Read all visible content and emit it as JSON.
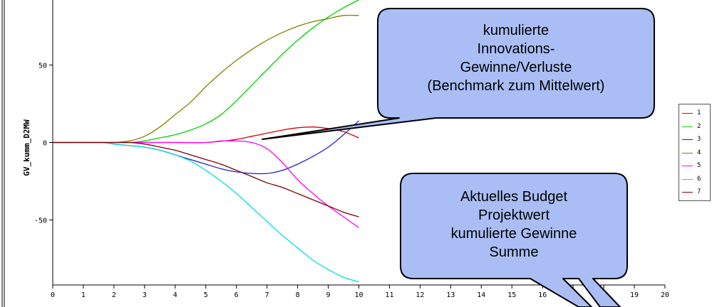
{
  "chart_data": {
    "type": "line",
    "ylabel": "GV_kumm_D2MW",
    "xlabel": "",
    "xlim": [
      0,
      20
    ],
    "ylim": [
      -92,
      92
    ],
    "x_ticks": [
      0,
      1,
      2,
      3,
      4,
      5,
      6,
      7,
      8,
      9,
      10,
      11,
      12,
      13,
      14,
      15,
      16,
      17,
      18,
      19,
      20
    ],
    "y_ticks": [
      -50,
      0,
      50
    ],
    "legend_position": "right",
    "series": [
      {
        "name": "1",
        "color": "#e00000",
        "x": [
          0,
          1.5,
          2,
          2.5,
          3,
          4,
          5,
          6,
          6.5,
          7,
          7.5,
          8,
          8.5,
          9,
          9.5,
          10
        ],
        "y": [
          0,
          0,
          0,
          0,
          0,
          0,
          0,
          2,
          4,
          6,
          8,
          9.5,
          10,
          9,
          7,
          3
        ]
      },
      {
        "name": "2",
        "color": "#00d000",
        "x": [
          0,
          1.5,
          2,
          2.5,
          3,
          3.5,
          4,
          4.5,
          5,
          5.5,
          6,
          6.5,
          7,
          7.5,
          8,
          8.5,
          9,
          9.5,
          10
        ],
        "y": [
          0,
          0,
          0,
          0,
          1,
          3,
          5,
          8,
          12,
          18,
          27,
          37,
          47,
          57,
          66,
          74,
          81,
          87,
          92
        ]
      },
      {
        "name": "3",
        "color": "#2020d0",
        "x": [
          0,
          1.5,
          2,
          2.5,
          3,
          3.5,
          4,
          4.5,
          5,
          5.5,
          6,
          6.5,
          7,
          7.5,
          8,
          8.5,
          9,
          9.5,
          10
        ],
        "y": [
          0,
          0,
          -1,
          -2,
          -3,
          -5,
          -8,
          -11,
          -14,
          -17,
          -19,
          -20,
          -20,
          -18,
          -14,
          -9,
          -3,
          5,
          14
        ]
      },
      {
        "name": "4",
        "color": "#808000",
        "x": [
          0,
          1.5,
          2,
          2.5,
          3,
          3.5,
          4,
          4.5,
          5,
          5.5,
          6,
          6.5,
          7,
          7.5,
          8,
          8.5,
          9,
          9.5,
          10
        ],
        "y": [
          0,
          0,
          0,
          1,
          4,
          10,
          18,
          26,
          36,
          45,
          53,
          60,
          66,
          71,
          75,
          78,
          80,
          82,
          82
        ]
      },
      {
        "name": "5",
        "color": "#ff00ff",
        "x": [
          0,
          1.5,
          2,
          2.5,
          3,
          4,
          5,
          5.5,
          6,
          6.5,
          7,
          7.5,
          8,
          8.5,
          9,
          9.5,
          10
        ],
        "y": [
          0,
          0,
          0,
          0,
          0,
          0,
          0,
          1,
          1,
          0,
          -4,
          -13,
          -24,
          -33,
          -41,
          -48,
          -55
        ]
      },
      {
        "name": "6",
        "color": "#00e0e0",
        "x": [
          0,
          1.5,
          2,
          2.5,
          3,
          3.5,
          4,
          4.5,
          5,
          5.5,
          6,
          6.5,
          7,
          7.5,
          8,
          8.5,
          9,
          9.5,
          10
        ],
        "y": [
          0,
          0,
          -1,
          -2,
          -3,
          -5,
          -8,
          -12,
          -18,
          -25,
          -33,
          -42,
          -51,
          -60,
          -68,
          -76,
          -82,
          -87,
          -90
        ]
      },
      {
        "name": "7",
        "color": "#800000",
        "x": [
          0,
          1.5,
          2,
          2.5,
          3,
          3.5,
          4,
          4.5,
          5,
          5.5,
          6,
          6.5,
          7,
          7.5,
          8,
          8.5,
          9,
          9.5,
          10
        ],
        "y": [
          0,
          0,
          0,
          0,
          -1,
          -3,
          -5,
          -8,
          -11,
          -14,
          -18,
          -22,
          -26,
          -29,
          -33,
          -37,
          -41,
          -45,
          -48
        ]
      }
    ]
  },
  "callouts": {
    "top": {
      "lines": [
        "kumulierte",
        "Innovations-",
        "Gewinne/Verluste",
        "(Benchmark zum Mittelwert)"
      ]
    },
    "bottom": {
      "lines": [
        "Aktuelles Budget",
        "Projektwert",
        "kumulierte Gewinne",
        "Summe"
      ]
    }
  },
  "colors": {
    "callout_fill": "#aabef5",
    "callout_border": "#000000",
    "axis": "#000000"
  }
}
